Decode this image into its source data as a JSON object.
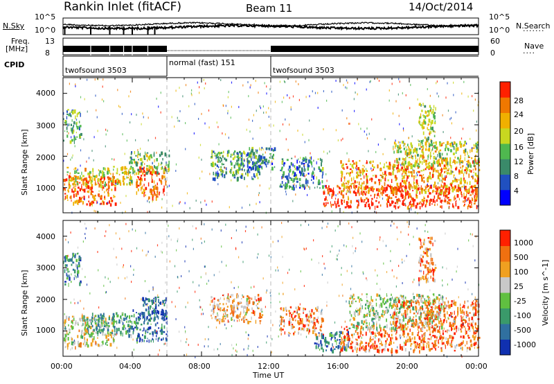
{
  "header": {
    "station": "Rankin Inlet (fitACF)",
    "beam": "Beam 11",
    "date": "14/Oct/2014"
  },
  "panels": {
    "nsky_label": "N.Sky",
    "nsky_ticks": [
      "10^5",
      "10^0"
    ],
    "nsearch_label": "N.Search",
    "nsearch_ticks": [
      "10^5",
      "10^0"
    ],
    "freq_label_line1": "Freq.",
    "freq_label_line2": "[MHz]",
    "freq_ticks": [
      "13",
      "8"
    ],
    "nave_label": "Nave",
    "nave_ticks": [
      "60",
      "0"
    ],
    "cpid_label": "CPID",
    "cpid_segments": [
      "twofsound 3503",
      "normal (fast) 151",
      "twofsound 3503"
    ]
  },
  "power_panel": {
    "ylabel": "Slant Range [km]",
    "yticks": [
      "4000",
      "3000",
      "2000",
      "1000"
    ],
    "colorbar_label": "Power [dB]",
    "colorbar_ticks": [
      "28",
      "24",
      "20",
      "16",
      "12",
      "8",
      "4"
    ],
    "colors": [
      "#0000ff",
      "#2050c0",
      "#3a8a6a",
      "#4fb84f",
      "#c8d820",
      "#f0b000",
      "#f07800",
      "#ff2000"
    ]
  },
  "velocity_panel": {
    "ylabel": "Slant Range [km]",
    "yticks": [
      "4000",
      "3000",
      "2000",
      "1000"
    ],
    "colorbar_label": "Velocity [m s^-1]",
    "colorbar_ticks": [
      "1000",
      "500",
      "100",
      "25",
      "-25",
      "-100",
      "-500",
      "-1000"
    ],
    "colors": [
      "#1030b0",
      "#3070a0",
      "#3a9a6a",
      "#60c040",
      "#c8c8c8",
      "#f0a020",
      "#f07010",
      "#ff2000"
    ]
  },
  "xaxis": {
    "label": "Time UT",
    "ticks": [
      "00:00",
      "04:00",
      "08:00",
      "12:00",
      "16:00",
      "20:00",
      "00:00"
    ]
  },
  "chart_data": {
    "type": "heatmap",
    "title": "Rankin Inlet (fitACF)",
    "xlabel": "Time UT",
    "ylabel": "Slant Range [km]",
    "xlim_hours": [
      0,
      24
    ],
    "ylim_km": [
      200,
      4500
    ],
    "x_ticks": [
      "00:00",
      "04:00",
      "08:00",
      "12:00",
      "16:00",
      "20:00",
      "00:00"
    ],
    "y_ticks": [
      1000,
      2000,
      3000,
      4000
    ],
    "cpid_segments": [
      {
        "name": "twofsound 3503",
        "start_hour": 0,
        "end_hour": 6
      },
      {
        "name": "normal (fast) 151",
        "start_hour": 6,
        "end_hour": 12
      },
      {
        "name": "twofsound 3503",
        "start_hour": 12,
        "end_hour": 24
      }
    ],
    "power_regions": [
      {
        "t0": 0.0,
        "t1": 3.0,
        "r0": 500,
        "r1": 1400,
        "level": 0.85
      },
      {
        "t0": 0.2,
        "t1": 4.0,
        "r0": 1100,
        "r1": 1700,
        "level": 0.6
      },
      {
        "t0": 4.2,
        "t1": 6.0,
        "r0": 700,
        "r1": 1700,
        "level": 0.85
      },
      {
        "t0": 3.8,
        "t1": 6.1,
        "r0": 1500,
        "r1": 2200,
        "level": 0.45
      },
      {
        "t0": 8.5,
        "t1": 11.5,
        "r0": 1300,
        "r1": 2200,
        "level": 0.4
      },
      {
        "t0": 10.0,
        "t1": 12.2,
        "r0": 1600,
        "r1": 2300,
        "level": 0.3
      },
      {
        "t0": 12.5,
        "t1": 15.0,
        "r0": 1000,
        "r1": 2000,
        "level": 0.3
      },
      {
        "t0": 15.0,
        "t1": 24.0,
        "r0": 400,
        "r1": 1100,
        "level": 0.95
      },
      {
        "t0": 16.0,
        "t1": 24.0,
        "r0": 900,
        "r1": 1900,
        "level": 0.75
      },
      {
        "t0": 19.0,
        "t1": 24.0,
        "r0": 1700,
        "r1": 2500,
        "level": 0.55
      },
      {
        "t0": 20.5,
        "t1": 21.5,
        "r0": 2500,
        "r1": 3700,
        "level": 0.5
      },
      {
        "t0": 0.0,
        "t1": 1.0,
        "r0": 2500,
        "r1": 3500,
        "level": 0.4
      }
    ],
    "velocity_regions": [
      {
        "t0": 0.0,
        "t1": 3.0,
        "r0": 500,
        "r1": 1500,
        "level": 0.55
      },
      {
        "t0": 1.0,
        "t1": 4.0,
        "r0": 900,
        "r1": 1600,
        "level": 0.35
      },
      {
        "t0": 4.0,
        "t1": 6.0,
        "r0": 700,
        "r1": 1700,
        "level": 0.2
      },
      {
        "t0": 4.5,
        "t1": 6.0,
        "r0": 1400,
        "r1": 2100,
        "level": 0.15
      },
      {
        "t0": 8.5,
        "t1": 11.5,
        "r0": 1300,
        "r1": 2200,
        "level": 0.7
      },
      {
        "t0": 12.5,
        "t1": 15.0,
        "r0": 900,
        "r1": 1800,
        "level": 0.75
      },
      {
        "t0": 14.5,
        "t1": 16.5,
        "r0": 400,
        "r1": 1000,
        "level": 0.2
      },
      {
        "t0": 16.0,
        "t1": 24.0,
        "r0": 400,
        "r1": 1200,
        "level": 0.8
      },
      {
        "t0": 16.5,
        "t1": 22.0,
        "r0": 1100,
        "r1": 2200,
        "level": 0.5
      },
      {
        "t0": 19.0,
        "t1": 24.0,
        "r0": 1200,
        "r1": 2000,
        "level": 0.8
      },
      {
        "t0": 20.5,
        "t1": 21.5,
        "r0": 2600,
        "r1": 4000,
        "level": 0.75
      },
      {
        "t0": 0.0,
        "t1": 1.0,
        "r0": 2500,
        "r1": 3500,
        "level": 0.3
      }
    ]
  }
}
